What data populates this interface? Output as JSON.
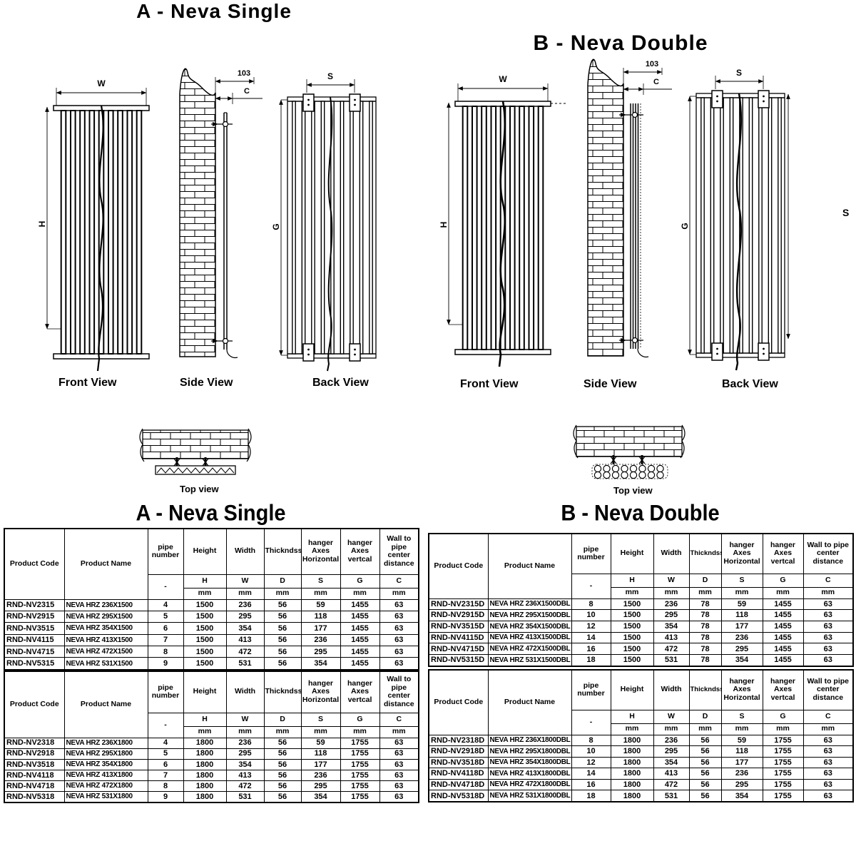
{
  "sections": {
    "a": {
      "title": "A - Neva Single"
    },
    "b": {
      "title": "B - Neva Double"
    }
  },
  "drawings": {
    "dim_w": "W",
    "dim_h": "H",
    "dim_s": "S",
    "dim_g": "G",
    "dim_c": "C",
    "dim_103": "103",
    "front_label": "Front View",
    "side_label": "Side View",
    "back_label": "Back View",
    "top_label": "Top view",
    "edge_label": "S"
  },
  "table_header": {
    "product_code": "Product Code",
    "product_name": "Product Name",
    "pipe_number": "pipe number",
    "height": "Height",
    "width": "Width",
    "thickness": "Thickndss",
    "hanger_h": "hanger Axes Horizontal",
    "hanger_v": "hanger Axes vertcal",
    "wall_c": "Wall to pipe center distance",
    "dash": "-",
    "sym_h": "H",
    "sym_w": "W",
    "sym_d": "D",
    "sym_s": "S",
    "sym_g": "G",
    "sym_c": "C",
    "unit": "mm"
  },
  "tables": {
    "a1500": {
      "rows": [
        [
          "RND-NV2315",
          "NEVA HRZ 236X1500",
          "4",
          "1500",
          "236",
          "56",
          "59",
          "1455",
          "63"
        ],
        [
          "RND-NV2915",
          "NEVA HRZ 295X1500",
          "5",
          "1500",
          "295",
          "56",
          "118",
          "1455",
          "63"
        ],
        [
          "RND-NV3515",
          "NEVA HRZ 354X1500",
          "6",
          "1500",
          "354",
          "56",
          "177",
          "1455",
          "63"
        ],
        [
          "RND-NV4115",
          "NEVA HRZ 413X1500",
          "7",
          "1500",
          "413",
          "56",
          "236",
          "1455",
          "63"
        ],
        [
          "RND-NV4715",
          "NEVA HRZ 472X1500",
          "8",
          "1500",
          "472",
          "56",
          "295",
          "1455",
          "63"
        ],
        [
          "RND-NV5315",
          "NEVA HRZ 531X1500",
          "9",
          "1500",
          "531",
          "56",
          "354",
          "1455",
          "63"
        ]
      ]
    },
    "a1800": {
      "rows": [
        [
          "RND-NV2318",
          "NEVA HRZ 236X1800",
          "4",
          "1800",
          "236",
          "56",
          "59",
          "1755",
          "63"
        ],
        [
          "RND-NV2918",
          "NEVA HRZ 295X1800",
          "5",
          "1800",
          "295",
          "56",
          "118",
          "1755",
          "63"
        ],
        [
          "RND-NV3518",
          "NEVA HRZ 354X1800",
          "6",
          "1800",
          "354",
          "56",
          "177",
          "1755",
          "63"
        ],
        [
          "RND-NV4118",
          "NEVA HRZ 413X1800",
          "7",
          "1800",
          "413",
          "56",
          "236",
          "1755",
          "63"
        ],
        [
          "RND-NV4718",
          "NEVA HRZ 472X1800",
          "8",
          "1800",
          "472",
          "56",
          "295",
          "1755",
          "63"
        ],
        [
          "RND-NV5318",
          "NEVA HRZ 531X1800",
          "9",
          "1800",
          "531",
          "56",
          "354",
          "1755",
          "63"
        ]
      ]
    },
    "b1500": {
      "rows": [
        [
          "RND-NV2315D",
          "NEVA HRZ 236X1500DBL",
          "8",
          "1500",
          "236",
          "78",
          "59",
          "1455",
          "63"
        ],
        [
          "RND-NV2915D",
          "NEVA HRZ 295X1500DBL",
          "10",
          "1500",
          "295",
          "78",
          "118",
          "1455",
          "63"
        ],
        [
          "RND-NV3515D",
          "NEVA HRZ 354X1500DBL",
          "12",
          "1500",
          "354",
          "78",
          "177",
          "1455",
          "63"
        ],
        [
          "RND-NV4115D",
          "NEVA HRZ 413X1500DBL",
          "14",
          "1500",
          "413",
          "78",
          "236",
          "1455",
          "63"
        ],
        [
          "RND-NV4715D",
          "NEVA HRZ 472X1500DBL",
          "16",
          "1500",
          "472",
          "78",
          "295",
          "1455",
          "63"
        ],
        [
          "RND-NV5315D",
          "NEVA HRZ 531X1500DBL",
          "18",
          "1500",
          "531",
          "78",
          "354",
          "1455",
          "63"
        ]
      ]
    },
    "b1800": {
      "rows": [
        [
          "RND-NV2318D",
          "NEVA HRZ 236X1800DBL",
          "8",
          "1800",
          "236",
          "56",
          "59",
          "1755",
          "63"
        ],
        [
          "RND-NV2918D",
          "NEVA HRZ 295X1800DBL",
          "10",
          "1800",
          "295",
          "56",
          "118",
          "1755",
          "63"
        ],
        [
          "RND-NV3518D",
          "NEVA HRZ 354X1800DBL",
          "12",
          "1800",
          "354",
          "56",
          "177",
          "1755",
          "63"
        ],
        [
          "RND-NV4118D",
          "NEVA HRZ 413X1800DBL",
          "14",
          "1800",
          "413",
          "56",
          "236",
          "1755",
          "63"
        ],
        [
          "RND-NV4718D",
          "NEVA HRZ 472X1800DBL",
          "16",
          "1800",
          "472",
          "56",
          "295",
          "1755",
          "63"
        ],
        [
          "RND-NV5318D",
          "NEVA HRZ 531X1800DBL",
          "18",
          "1800",
          "531",
          "56",
          "354",
          "1755",
          "63"
        ]
      ]
    }
  }
}
